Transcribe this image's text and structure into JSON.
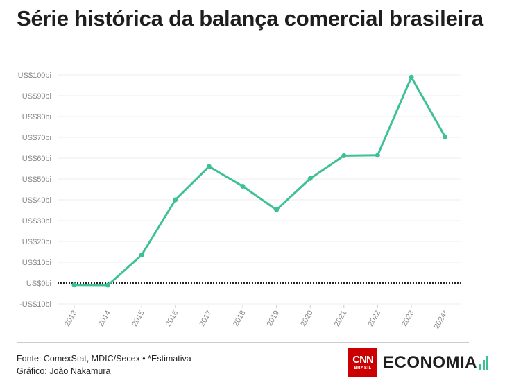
{
  "title": "Série histórica da balança comercial brasileira",
  "footer": {
    "source": "Fonte: ComexStat, MDIC/Secex • *Estimativa",
    "credit": "Gráfico: João Nakamura"
  },
  "logos": {
    "cnn": "CNN",
    "cnn_sub": "BRASIL",
    "economia": "ECONOMIA"
  },
  "colors": {
    "line": "#3dbf97",
    "zero_line": "#222222",
    "grid": "#eeeeee",
    "cnn_red": "#cc0000"
  },
  "chart_data": {
    "type": "line",
    "categories": [
      "2013",
      "2014",
      "2015",
      "2016",
      "2017",
      "2018",
      "2019",
      "2020",
      "2021",
      "2022",
      "2023",
      "2024*"
    ],
    "series": [
      {
        "values": [
          -0.9,
          -1.0,
          13.5,
          40.0,
          56.0,
          46.5,
          35.2,
          50.2,
          61.2,
          61.4,
          98.9,
          70.3
        ]
      }
    ],
    "y_ticks": [
      -10,
      0,
      10,
      20,
      30,
      40,
      50,
      60,
      70,
      80,
      90,
      100
    ],
    "y_tick_labels": [
      "-US$10bi",
      "US$0bi",
      "US$10bi",
      "US$20bi",
      "US$30bi",
      "US$40bi",
      "US$50bi",
      "US$60bi",
      "US$70bi",
      "US$80bi",
      "US$90bi",
      "US$100bi"
    ],
    "ylim": [
      -10,
      100
    ],
    "zero_line": "dotted",
    "grid": true,
    "legend": "none",
    "xlabel": "",
    "ylabel": ""
  }
}
